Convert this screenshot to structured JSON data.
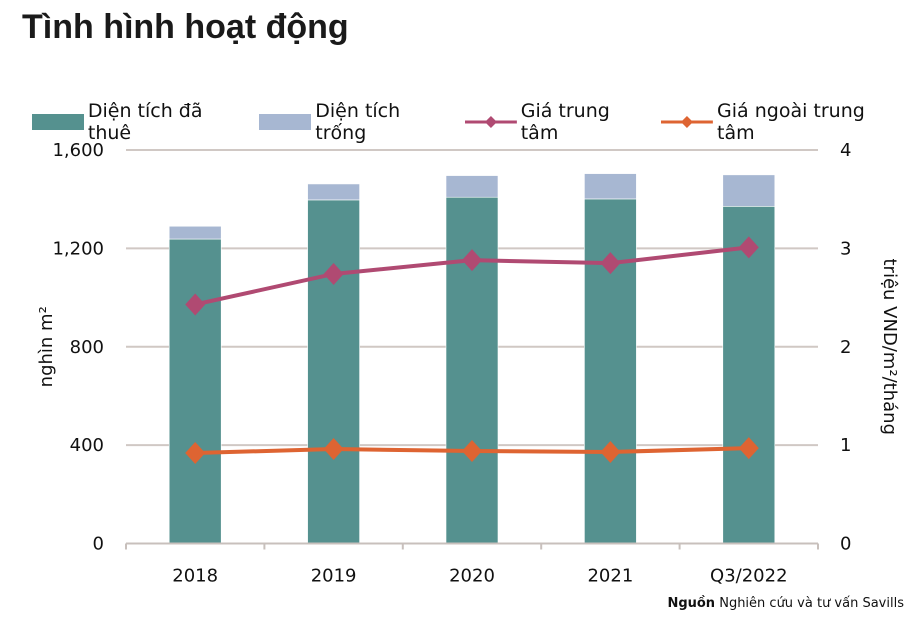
{
  "title": "Tình hình hoạt động",
  "source_label": "Nguồn",
  "source_text": "Nghiên cứu và tư vấn Savills",
  "chart_data": {
    "type": "bar+line",
    "categories": [
      "2018",
      "2019",
      "2020",
      "2021",
      "Q3/2022"
    ],
    "ylabel": "nghìn m²",
    "y2label": "triệu VND/m²/tháng",
    "ylim": [
      0,
      1600
    ],
    "y2lim": [
      0,
      4
    ],
    "yticks": [
      "0",
      "400",
      "800",
      "1,200",
      "1,600"
    ],
    "y2ticks": [
      "0",
      "1",
      "2",
      "3",
      "4"
    ],
    "grid": true,
    "legend": "top",
    "series": [
      {
        "name": "Diện tích đã thuê",
        "type": "stacked-bar",
        "axis": "left",
        "color": "#55918f",
        "values": [
          1238,
          1397,
          1408,
          1401,
          1371
        ]
      },
      {
        "name": "Diện tích trống",
        "type": "stacked-bar",
        "axis": "left",
        "color": "#a7b7d2",
        "values": [
          52,
          65,
          88,
          103,
          128
        ]
      },
      {
        "name": "Giá trung tâm",
        "type": "line",
        "axis": "right",
        "color": "#b04a72",
        "values": [
          2.43,
          2.74,
          2.88,
          2.85,
          3.01
        ]
      },
      {
        "name": "Giá ngoài trung tâm",
        "type": "line",
        "axis": "right",
        "color": "#de6432",
        "values": [
          0.92,
          0.96,
          0.94,
          0.93,
          0.97
        ]
      }
    ]
  }
}
